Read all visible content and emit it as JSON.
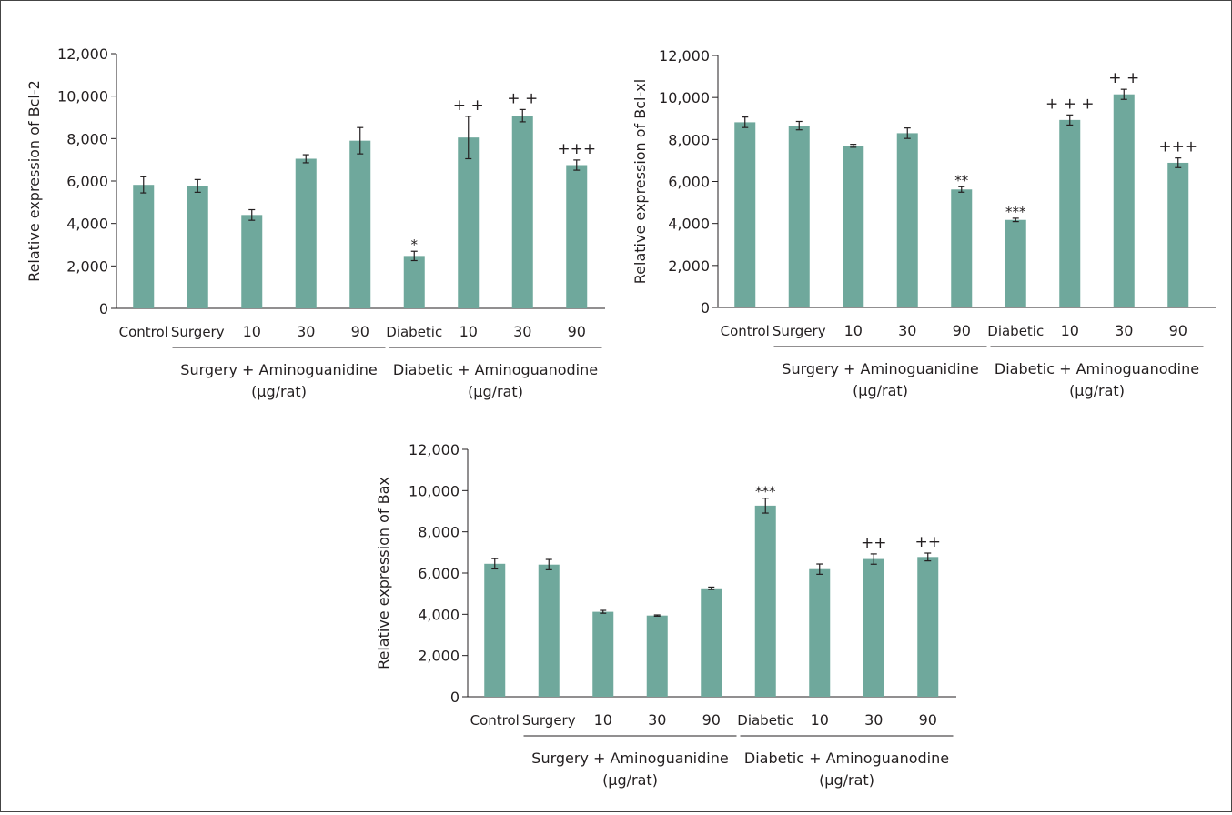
{
  "chart_data": [
    {
      "type": "bar",
      "ylabel": "Relative expression of Bcl-2",
      "ylim": [
        0,
        12000
      ],
      "yticks": [
        0,
        2000,
        4000,
        6000,
        8000,
        10000,
        12000
      ],
      "ytick_labels": [
        "0",
        "2,000",
        "4,000",
        "6,000",
        "8,000",
        "10,000",
        "12,000"
      ],
      "categories": [
        "Control",
        "Surgery",
        "10",
        "30",
        "90",
        "Diabetic",
        "10",
        "30",
        "90"
      ],
      "values": [
        5820,
        5770,
        4400,
        7050,
        7900,
        2470,
        8050,
        9080,
        6750
      ],
      "errors": [
        380,
        300,
        250,
        190,
        620,
        220,
        1000,
        290,
        240
      ],
      "annotations": [
        "",
        "",
        "",
        "",
        "",
        "*",
        "+ +",
        "+ +",
        "+++"
      ],
      "groups": [
        {
          "label": "Surgery + Aminoguanidine",
          "sublabel": "(μg/rat)",
          "from": 1,
          "to": 4
        },
        {
          "label": "Diabetic + Aminoguanodine",
          "sublabel": "(μg/rat)",
          "from": 5,
          "to": 8
        }
      ],
      "bar_color": "#6fa89c"
    },
    {
      "type": "bar",
      "ylabel": "Relative expression of Bcl-xl",
      "ylim": [
        0,
        12000
      ],
      "yticks": [
        0,
        2000,
        4000,
        6000,
        8000,
        10000,
        12000
      ],
      "ytick_labels": [
        "0",
        "2,000",
        "4,000",
        "6,000",
        "8,000",
        "10,000",
        "12,000"
      ],
      "categories": [
        "Control",
        "Surgery",
        "10",
        "30",
        "90",
        "Diabetic",
        "10",
        "30",
        "90"
      ],
      "values": [
        8820,
        8660,
        7700,
        8300,
        5620,
        4170,
        8930,
        10150,
        6890
      ],
      "errors": [
        250,
        200,
        70,
        250,
        130,
        80,
        240,
        240,
        230
      ],
      "annotations": [
        "",
        "",
        "",
        "",
        "**",
        "***",
        "+ + +",
        "+ +",
        "+++"
      ],
      "groups": [
        {
          "label": "Surgery + Aminoguanidine",
          "sublabel": "(μg/rat)",
          "from": 1,
          "to": 4
        },
        {
          "label": "Diabetic + Aminoguanodine",
          "sublabel": "(μg/rat)",
          "from": 5,
          "to": 8
        }
      ],
      "bar_color": "#6fa89c"
    },
    {
      "type": "bar",
      "ylabel": "Relative expression of Bax",
      "ylim": [
        0,
        12000
      ],
      "yticks": [
        0,
        2000,
        4000,
        6000,
        8000,
        10000,
        12000
      ],
      "ytick_labels": [
        "0",
        "2,000",
        "4,000",
        "6,000",
        "8,000",
        "10,000",
        "12,000"
      ],
      "categories": [
        "Control",
        "Surgery",
        "10",
        "30",
        "90",
        "Diabetic",
        "10",
        "30",
        "90"
      ],
      "values": [
        6450,
        6410,
        4120,
        3940,
        5260,
        9270,
        6190,
        6680,
        6780
      ],
      "errors": [
        250,
        250,
        70,
        30,
        60,
        360,
        250,
        250,
        190
      ],
      "annotations": [
        "",
        "",
        "",
        "",
        "",
        "***",
        "",
        "++",
        "++"
      ],
      "groups": [
        {
          "label": "Surgery + Aminoguanidine",
          "sublabel": "(μg/rat)",
          "from": 1,
          "to": 4
        },
        {
          "label": "Diabetic + Aminoguanodine",
          "sublabel": "(μg/rat)",
          "from": 5,
          "to": 8
        }
      ],
      "bar_color": "#6fa89c"
    }
  ]
}
